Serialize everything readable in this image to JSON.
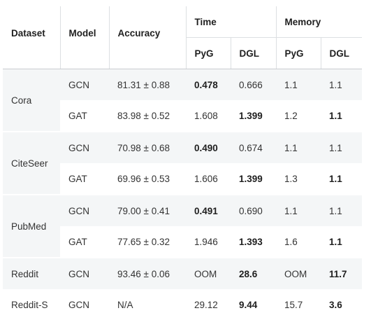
{
  "headers": {
    "dataset": "Dataset",
    "model": "Model",
    "accuracy": "Accuracy",
    "time_group": "Time",
    "memory_group": "Memory",
    "time_pyg": "PyG",
    "time_dgl": "DGL",
    "mem_pyg": "PyG",
    "mem_dgl": "DGL"
  },
  "rows": [
    {
      "dataset": "Cora",
      "model": "GCN",
      "accuracy": "81.31 ± 0.88",
      "time_pyg": "0.478",
      "time_dgl": "0.666",
      "mem_pyg": "1.1",
      "mem_dgl": "1.1"
    },
    {
      "dataset": "Cora",
      "model": "GAT",
      "accuracy": "83.98 ± 0.52",
      "time_pyg": "1.608",
      "time_dgl": "1.399",
      "mem_pyg": "1.2",
      "mem_dgl": "1.1"
    },
    {
      "dataset": "CiteSeer",
      "model": "GCN",
      "accuracy": "70.98 ± 0.68",
      "time_pyg": "0.490",
      "time_dgl": "0.674",
      "mem_pyg": "1.1",
      "mem_dgl": "1.1"
    },
    {
      "dataset": "CiteSeer",
      "model": "GAT",
      "accuracy": "69.96 ± 0.53",
      "time_pyg": "1.606",
      "time_dgl": "1.399",
      "mem_pyg": "1.3",
      "mem_dgl": "1.1"
    },
    {
      "dataset": "PubMed",
      "model": "GCN",
      "accuracy": "79.00 ± 0.41",
      "time_pyg": "0.491",
      "time_dgl": "0.690",
      "mem_pyg": "1.1",
      "mem_dgl": "1.1"
    },
    {
      "dataset": "PubMed",
      "model": "GAT",
      "accuracy": "77.65 ± 0.32",
      "time_pyg": "1.946",
      "time_dgl": "1.393",
      "mem_pyg": "1.6",
      "mem_dgl": "1.1"
    },
    {
      "dataset": "Reddit",
      "model": "GCN",
      "accuracy": "93.46 ± 0.06",
      "time_pyg": "OOM",
      "time_dgl": "28.6",
      "mem_pyg": "OOM",
      "mem_dgl": "11.7"
    },
    {
      "dataset": "Reddit-S",
      "model": "GCN",
      "accuracy": "N/A",
      "time_pyg": "29.12",
      "time_dgl": "9.44",
      "mem_pyg": "15.7",
      "mem_dgl": "3.6"
    }
  ]
}
